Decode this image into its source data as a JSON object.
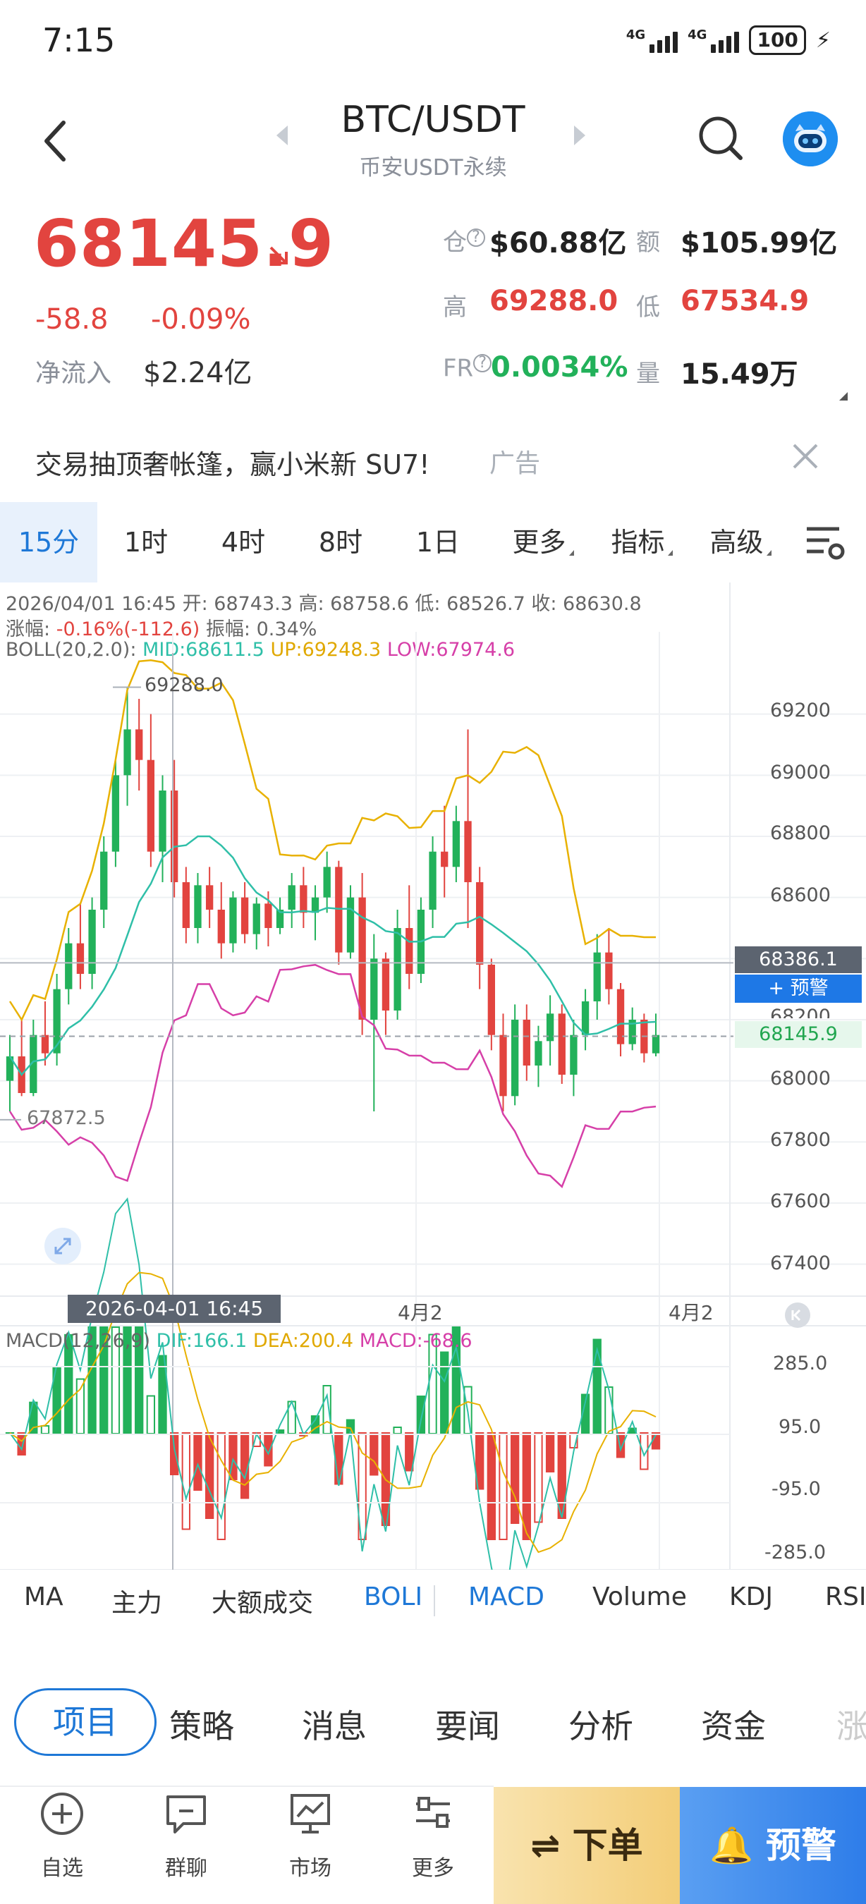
{
  "status": {
    "time": "7:15",
    "net1": "4G",
    "net2": "4G",
    "battery": "100"
  },
  "header": {
    "pair": "BTC/USDT",
    "market": "币安USDT永续"
  },
  "price": {
    "last": "68145.9",
    "change": "-58.8",
    "change_pct": "-0.09%",
    "netin_label": "净流入",
    "netin_value": "$2.24亿",
    "oi_label": "仓",
    "oi_value": "$60.88亿",
    "turnover_label": "额",
    "turnover_value": "$105.99亿",
    "high_label": "高",
    "high_value": "69288.0",
    "low_label": "低",
    "low_value": "67534.9",
    "fr_label": "FR",
    "fr_value": "0.0034%",
    "vol_label": "量",
    "vol_value": "15.49万"
  },
  "ad": {
    "text": "交易抽顶奢帐篷，赢小米新 SU7!",
    "tag": "广告"
  },
  "timeframes": [
    {
      "label": "15分"
    },
    {
      "label": "1时"
    },
    {
      "label": "4时"
    },
    {
      "label": "8时"
    },
    {
      "label": "1日"
    },
    {
      "label": "更多"
    },
    {
      "label": "指标"
    },
    {
      "label": "高级"
    }
  ],
  "ohlc_line": "2026/04/01 16:45 开:  68743.3 高:  68758.6 低:  68526.7 收:  68630.8",
  "amp_line": {
    "label1": "涨幅:",
    "value1": "-0.16%(-112.6)",
    "label2": "振幅:",
    "value2": "0.34%"
  },
  "boll": {
    "name": "BOLL(20,2.0):",
    "mid": "MID:68611.5",
    "up": "UP:69248.3",
    "low": "LOW:67974.6"
  },
  "macd": {
    "name": "MACD(12,26,9)",
    "dif": "DIF:166.1",
    "dea": "DEA:200.4",
    "macd": "MACD:-68.6"
  },
  "chart_labels": {
    "max_mark": "69288.0",
    "min_mark": "67872.5",
    "crosshair_price": "68386.1",
    "alert_button": "+ 预警",
    "current_price": "68145.9",
    "crosshair_date": "2026-04-01 16:45",
    "x1": "4月2",
    "x2": "4月2",
    "price_ticks": [
      "69200",
      "69000",
      "68800",
      "68600",
      "68200",
      "68000",
      "67800",
      "67600",
      "67400"
    ],
    "macd_ticks": [
      "285.0",
      "95.0",
      "-95.0",
      "-285.0"
    ]
  },
  "chart_data": {
    "type": "candlestick",
    "interval": "15m",
    "ylim": [
      67300,
      69400
    ],
    "candles": [
      [
        68000,
        68150,
        67900,
        68080
      ],
      [
        68080,
        68200,
        67950,
        67960
      ],
      [
        67960,
        68200,
        67950,
        68150
      ],
      [
        68150,
        68260,
        68050,
        68090
      ],
      [
        68090,
        68350,
        68050,
        68300
      ],
      [
        68300,
        68500,
        68250,
        68450
      ],
      [
        68450,
        68580,
        68300,
        68350
      ],
      [
        68350,
        68600,
        68300,
        68560
      ],
      [
        68560,
        68800,
        68500,
        68750
      ],
      [
        68750,
        69050,
        68700,
        69000
      ],
      [
        69000,
        69288,
        68900,
        69150
      ],
      [
        69150,
        69250,
        68950,
        69050
      ],
      [
        69050,
        69200,
        68700,
        68750
      ],
      [
        68750,
        69000,
        68650,
        68950
      ],
      [
        68950,
        69050,
        68600,
        68650
      ],
      [
        68650,
        68700,
        68450,
        68500
      ],
      [
        68500,
        68680,
        68450,
        68640
      ],
      [
        68640,
        68700,
        68500,
        68560
      ],
      [
        68560,
        68650,
        68400,
        68450
      ],
      [
        68450,
        68620,
        68420,
        68600
      ],
      [
        68600,
        68650,
        68450,
        68480
      ],
      [
        68480,
        68600,
        68430,
        68580
      ],
      [
        68580,
        68620,
        68440,
        68500
      ],
      [
        68500,
        68600,
        68480,
        68560
      ],
      [
        68560,
        68680,
        68500,
        68640
      ],
      [
        68640,
        68700,
        68500,
        68550
      ],
      [
        68550,
        68640,
        68460,
        68600
      ],
      [
        68600,
        68750,
        68550,
        68700
      ],
      [
        68700,
        68720,
        68380,
        68420
      ],
      [
        68420,
        68640,
        68400,
        68600
      ],
      [
        68600,
        68680,
        68150,
        68200
      ],
      [
        68200,
        68480,
        67900,
        68400
      ],
      [
        68400,
        68420,
        68150,
        68230
      ],
      [
        68230,
        68560,
        68200,
        68500
      ],
      [
        68500,
        68640,
        68300,
        68350
      ],
      [
        68350,
        68600,
        68320,
        68560
      ],
      [
        68560,
        68800,
        68500,
        68750
      ],
      [
        68750,
        68900,
        68600,
        68700
      ],
      [
        68700,
        68900,
        68650,
        68850
      ],
      [
        68850,
        69150,
        68500,
        68650
      ],
      [
        68650,
        68700,
        68300,
        68380
      ],
      [
        68380,
        68400,
        68100,
        68150
      ],
      [
        68150,
        68220,
        67900,
        67950
      ],
      [
        67950,
        68250,
        67920,
        68200
      ],
      [
        68200,
        68250,
        68000,
        68050
      ],
      [
        68050,
        68180,
        67980,
        68130
      ],
      [
        68130,
        68280,
        68050,
        68220
      ],
      [
        68220,
        68250,
        67990,
        68020
      ],
      [
        68020,
        68200,
        67950,
        68150
      ],
      [
        68150,
        68300,
        68100,
        68260
      ],
      [
        68260,
        68480,
        68200,
        68420
      ],
      [
        68420,
        68500,
        68250,
        68300
      ],
      [
        68300,
        68320,
        68080,
        68120
      ],
      [
        68120,
        68240,
        68100,
        68200
      ],
      [
        68200,
        68220,
        68060,
        68090
      ],
      [
        68090,
        68220,
        68080,
        68150
      ]
    ],
    "boll_up": [],
    "boll_mid": [],
    "boll_low": [],
    "macd_hist": []
  },
  "indicators": [
    "MA",
    "主力",
    "大额成交",
    "BOLI",
    "MACD",
    "Volume",
    "KDJ",
    "RSI"
  ],
  "content_tabs": [
    "项目",
    "策略",
    "消息",
    "要闻",
    "分析",
    "资金",
    "涨"
  ],
  "bottom": {
    "fav": "自选",
    "chat": "群聊",
    "market": "市场",
    "more": "更多",
    "order": "下单",
    "alert": "预警"
  }
}
